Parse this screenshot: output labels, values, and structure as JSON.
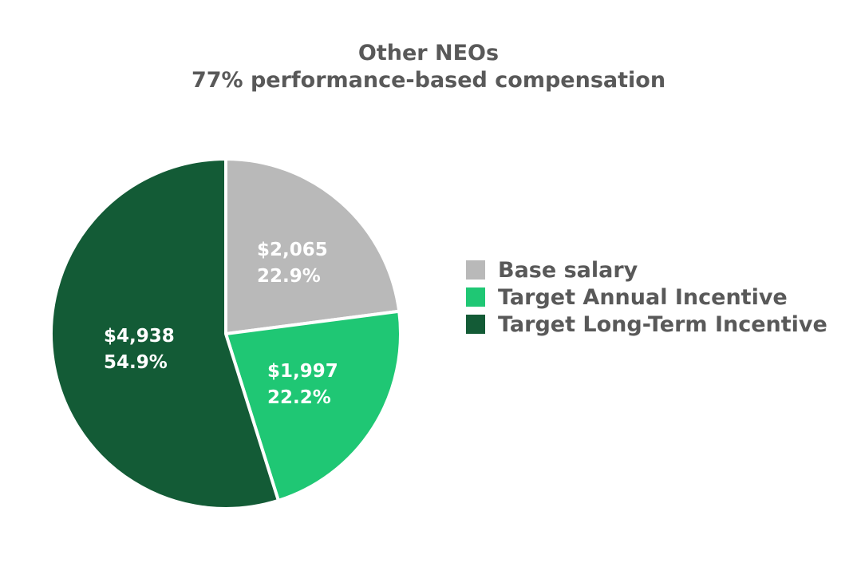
{
  "chart_data": {
    "type": "pie",
    "title": "Other NEOs",
    "subtitle": "77% performance-based compensation",
    "slices": [
      {
        "name": "Base salary",
        "value": 2065,
        "value_label": "$2,065",
        "percent_label": "22.9%",
        "color": "#b9b9b9"
      },
      {
        "name": "Target Annual Incentive",
        "value": 1997,
        "value_label": "$1,997",
        "percent_label": "22.2%",
        "color": "#1fc774"
      },
      {
        "name": "Target Long-Term Incentive",
        "value": 4938,
        "value_label": "$4,938",
        "percent_label": "54.9%",
        "color": "#135b36"
      }
    ],
    "legend_position": "right"
  }
}
